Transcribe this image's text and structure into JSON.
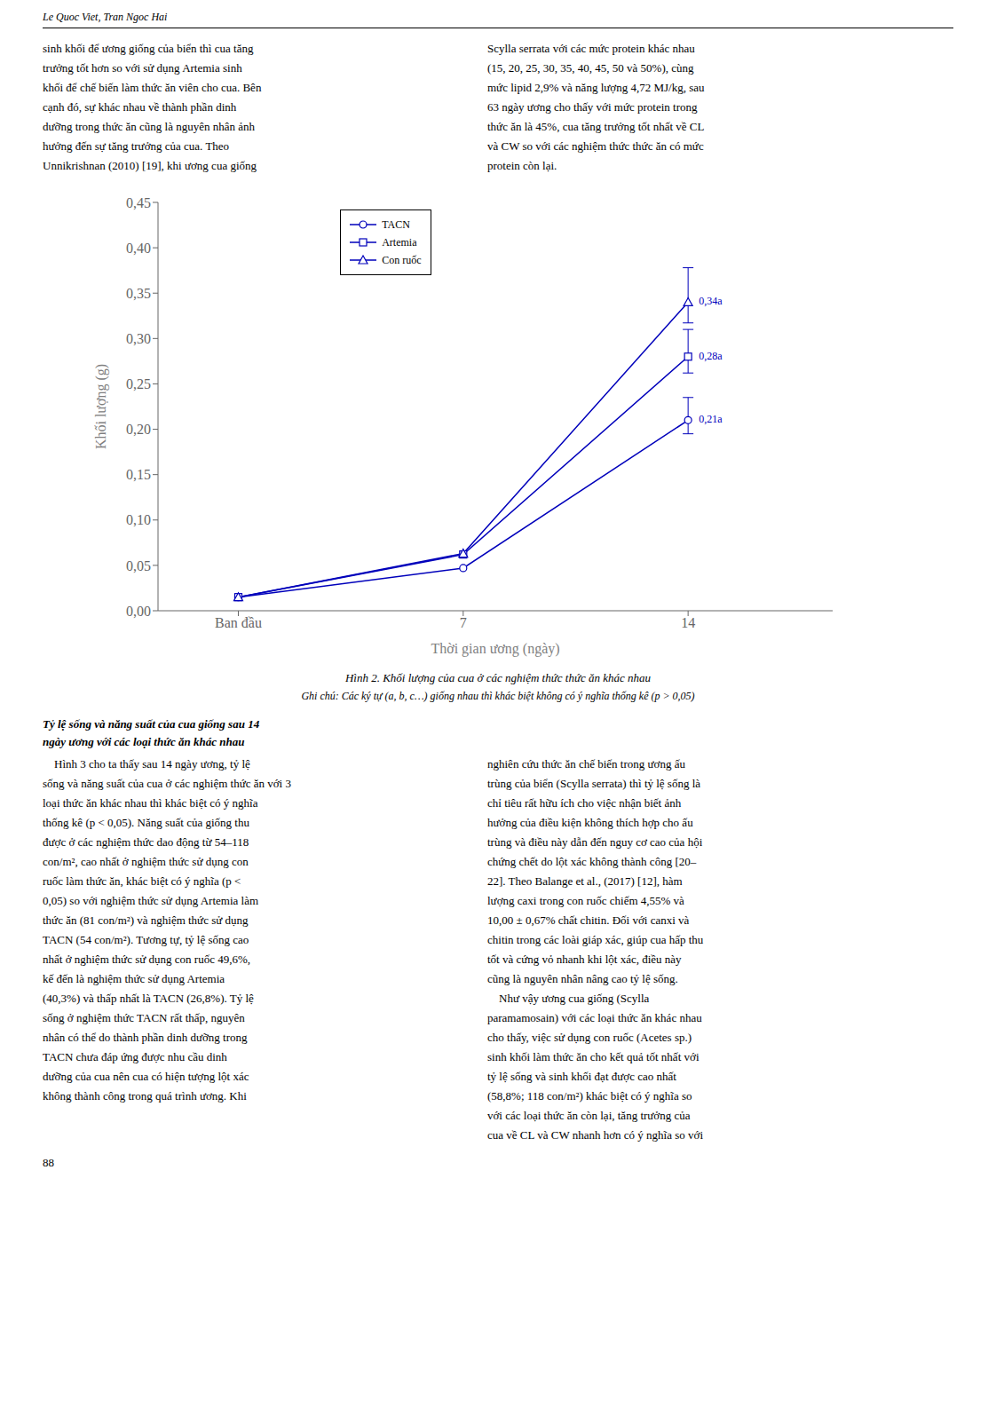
{
  "header_text": "Le Quoc Viet, Tran Ngoc Hai",
  "page_number": "88",
  "text_blocks_top": {
    "left": [
      "sinh khối để ương giống của biển thì cua tăng",
      "trưởng tốt hơn so với sử dụng Artemia sinh",
      "khối để chế biến làm thức ăn viên cho cua. Bên",
      "cạnh đó, sự khác nhau về thành phần dinh",
      "dưỡng trong thức ăn cũng là nguyên nhân ảnh",
      "hưởng đến sự tăng trưởng của cua. Theo",
      "Unnikrishnan (2010) [19], khi ương cua giống"
    ],
    "right": [
      "Scylla serrata với các mức protein khác nhau",
      "(15, 20, 25, 30, 35, 40, 45, 50 và 50%), cùng",
      "mức lipid 2,9% và năng lượng 4,72 MJ/kg, sau",
      "63 ngày ương cho thấy với mức protein trong",
      "thức ăn là 45%, cua tăng trưởng tốt nhất về CL",
      "và CW so với các nghiệm thức thức ăn có mức",
      "protein còn lại."
    ]
  },
  "section_title_lines": [
    "Tỷ lệ sống và năng suất của cua giống sau 14",
    "ngày ương với các loại thức ăn khác nhau"
  ],
  "text_blocks_bottom": {
    "left": [
      "    Hình 3 cho ta thấy sau 14 ngày ương, tỷ lệ",
      "sống và năng suất của cua ở các nghiệm thức ăn với 3",
      "loại thức ăn khác nhau thì khác biệt có ý nghĩa",
      "thống kê (p < 0,05). Năng suất của giống thu",
      "được ở các nghiệm thức dao động từ 54–118",
      "con/m², cao nhất ở nghiệm thức sử dụng con",
      "ruốc làm thức ăn, khác biệt có ý nghĩa (p <",
      "0,05) so với nghiệm thức sử dụng Artemia làm",
      "thức ăn (81 con/m²) và nghiệm thức sử dụng",
      "TACN (54 con/m²). Tương tự, tỷ lệ sống cao",
      "nhất ở nghiệm thức sử dụng con ruốc 49,6%,",
      "kế đến là nghiệm thức sử dụng Artemia",
      "(40,3%) và thấp nhất là TACN (26,8%). Tỷ lệ",
      "sống ở nghiệm thức TACN rất thấp, nguyên",
      "nhân có thể do thành phần dinh dưỡng trong",
      "TACN chưa đáp ứng được nhu cầu dinh",
      "dưỡng của cua nên cua có hiện tượng lột xác",
      "không thành công trong quá trình ương. Khi"
    ],
    "right": [
      "nghiên cứu thức ăn chế biến trong ương ấu",
      "trùng của biển (Scylla serrata) thì tỷ lệ sống là",
      "chỉ tiêu rất hữu ích cho việc nhận biết ảnh",
      "hưởng của điều kiện không thích hợp cho ấu",
      "trùng và điều này dẫn đến nguy cơ cao của hội",
      "chứng chết do lột xác không thành công [20–",
      "22]. Theo Balange et al., (2017) [12], hàm",
      "lượng caxi trong con ruốc chiếm 4,55% và",
      "10,00 ± 0,67% chất chitin. Đối với canxi và",
      "chitin trong các loài giáp xác, giúp cua hấp thu",
      "tốt và cứng vỏ nhanh khi lột xác, điều này",
      "cũng là nguyên nhân nâng cao tỷ lệ sống.",
      "    Như vậy ương cua giống (Scylla",
      "paramamosain) với các loại thức ăn khác nhau",
      "cho thấy, việc sử dụng con ruốc (Acetes sp.)",
      "sinh khối làm thức ăn cho kết quả tốt nhất với",
      "tỷ lệ sống và sinh khối đạt được cao nhất",
      "(58,8%; 118 con/m²) khác biệt có ý nghĩa so",
      "với các loại thức ăn còn lại, tăng trưởng của",
      "cua về CL và CW nhanh hơn có ý nghĩa so với"
    ]
  },
  "chart_data": {
    "type": "line",
    "title": "Hình 2. Khối lượng của cua ở các nghiệm thức thức ăn khác nhau",
    "subtitle": "Ghi chú: Các ký tự (a, b, c…) giống nhau thì khác biệt không có ý nghĩa thống kê (p > 0,05)",
    "x_label": "Thời gian ương (ngày)",
    "y_label": "Khối lượng (g)",
    "x": [
      0,
      7,
      14
    ],
    "xlim": [
      -2.5,
      18.5
    ],
    "xticks": [
      {
        "value": 0,
        "label": "Ban đầu"
      },
      7,
      14
    ],
    "ylim": [
      0.0,
      0.45
    ],
    "yticks": [
      {
        "value": 0.0,
        "label": "0,00"
      },
      {
        "value": 0.05,
        "label": "0,05"
      },
      {
        "value": 0.1,
        "label": "0,10"
      },
      {
        "value": 0.15,
        "label": "0,15"
      },
      {
        "value": 0.2,
        "label": "0,20"
      },
      {
        "value": 0.25,
        "label": "0,25"
      },
      {
        "value": 0.3,
        "label": "0,30"
      },
      {
        "value": 0.35,
        "label": "0,35"
      },
      {
        "value": 0.4,
        "label": "0,40"
      },
      {
        "value": 0.45,
        "label": "0,45"
      }
    ],
    "grid": false,
    "legend": "upper left",
    "series": [
      {
        "name": "TACN",
        "color": "#0000bb",
        "marker": "circle",
        "values": [
          0.015,
          0.047,
          0.21
        ],
        "value_labels": [
          null,
          null,
          "0,21a"
        ],
        "error_lower": [
          null,
          null,
          0.015
        ],
        "error_upper": [
          null,
          null,
          0.025
        ]
      },
      {
        "name": "Artemia",
        "color": "#0000bb",
        "marker": "square",
        "values": [
          0.015,
          0.062,
          0.28
        ],
        "value_labels": [
          null,
          null,
          "0,28a"
        ],
        "error_lower": [
          null,
          null,
          0.018
        ],
        "error_upper": [
          null,
          null,
          0.03
        ]
      },
      {
        "name": "Con ruốc",
        "color": "#0000bb",
        "marker": "triangle",
        "values": [
          0.015,
          0.063,
          0.34
        ],
        "value_labels": [
          null,
          null,
          "0,34a"
        ],
        "error_lower": [
          null,
          null,
          0.0228
        ],
        "error_upper": [
          null,
          null,
          0.038
        ]
      }
    ]
  }
}
